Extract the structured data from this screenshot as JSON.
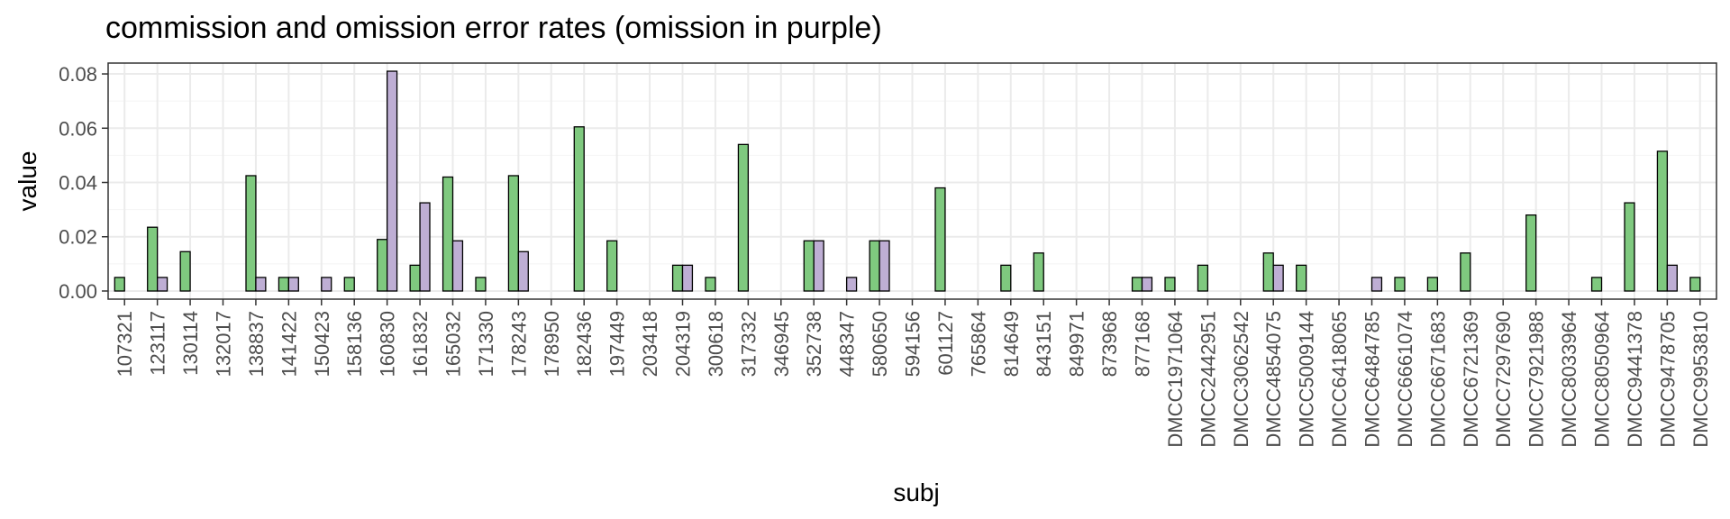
{
  "chart_data": {
    "type": "bar",
    "title": "commission and omission error rates (omission in purple)",
    "xlabel": "subj",
    "ylabel": "value",
    "ylim": [
      -0.003,
      0.084
    ],
    "yticks": [
      0.0,
      0.02,
      0.04,
      0.06,
      0.08
    ],
    "ytick_labels": [
      "0.00",
      "0.02",
      "0.04",
      "0.06",
      "0.08"
    ],
    "grid": true,
    "colors": {
      "commission": "#7fc97f",
      "omission": "#beaed4"
    },
    "categories": [
      "107321",
      "123117",
      "130114",
      "132017",
      "138837",
      "141422",
      "150423",
      "158136",
      "160830",
      "161832",
      "165032",
      "171330",
      "178243",
      "178950",
      "182436",
      "197449",
      "203418",
      "204319",
      "300618",
      "317332",
      "346945",
      "352738",
      "448347",
      "580650",
      "594156",
      "601127",
      "765864",
      "814649",
      "843151",
      "849971",
      "873968",
      "877168",
      "DMCC1971064",
      "DMCC2442951",
      "DMCC3062542",
      "DMCC4854075",
      "DMCC5009144",
      "DMCC6418065",
      "DMCC6484785",
      "DMCC6661074",
      "DMCC6671683",
      "DMCC6721369",
      "DMCC7297690",
      "DMCC7921988",
      "DMCC8033964",
      "DMCC8050964",
      "DMCC9441378",
      "DMCC9478705",
      "DMCC9953810"
    ],
    "series": [
      {
        "values": [
          0.005,
          0.0235,
          0.0145,
          0.0,
          0.0425,
          0.005,
          0.0,
          0.005,
          0.019,
          0.0095,
          0.042,
          0.005,
          0.0425,
          0.0,
          0.0605,
          0.0185,
          0.0,
          0.0095,
          0.005,
          0.054,
          0.0,
          0.0185,
          0.0,
          0.0185,
          0.0,
          0.038,
          0.0,
          0.0095,
          0.014,
          0.0,
          0.0,
          0.005,
          0.005,
          0.0095,
          0.0,
          0.014,
          0.0095,
          0.0,
          0.0,
          0.005,
          0.005,
          0.014,
          0.0,
          0.028,
          0.0,
          0.005,
          0.0325,
          0.0515,
          0.005
        ]
      },
      {
        "values": [
          0.0,
          0.005,
          0.0,
          0.0,
          0.005,
          0.005,
          0.005,
          0.0,
          0.081,
          0.0325,
          0.0185,
          0.0,
          0.0145,
          0.0,
          0.0,
          0.0,
          0.0,
          0.0095,
          0.0,
          0.0,
          0.0,
          0.0185,
          0.005,
          0.0185,
          0.0,
          0.0,
          0.0,
          0.0,
          0.0,
          0.0,
          0.0,
          0.005,
          0.0,
          0.0,
          0.0,
          0.0095,
          0.0,
          0.0,
          0.005,
          0.0,
          0.0,
          0.0,
          0.0,
          0.0,
          0.0,
          0.0,
          0.0,
          0.0095,
          0.0
        ]
      }
    ]
  }
}
